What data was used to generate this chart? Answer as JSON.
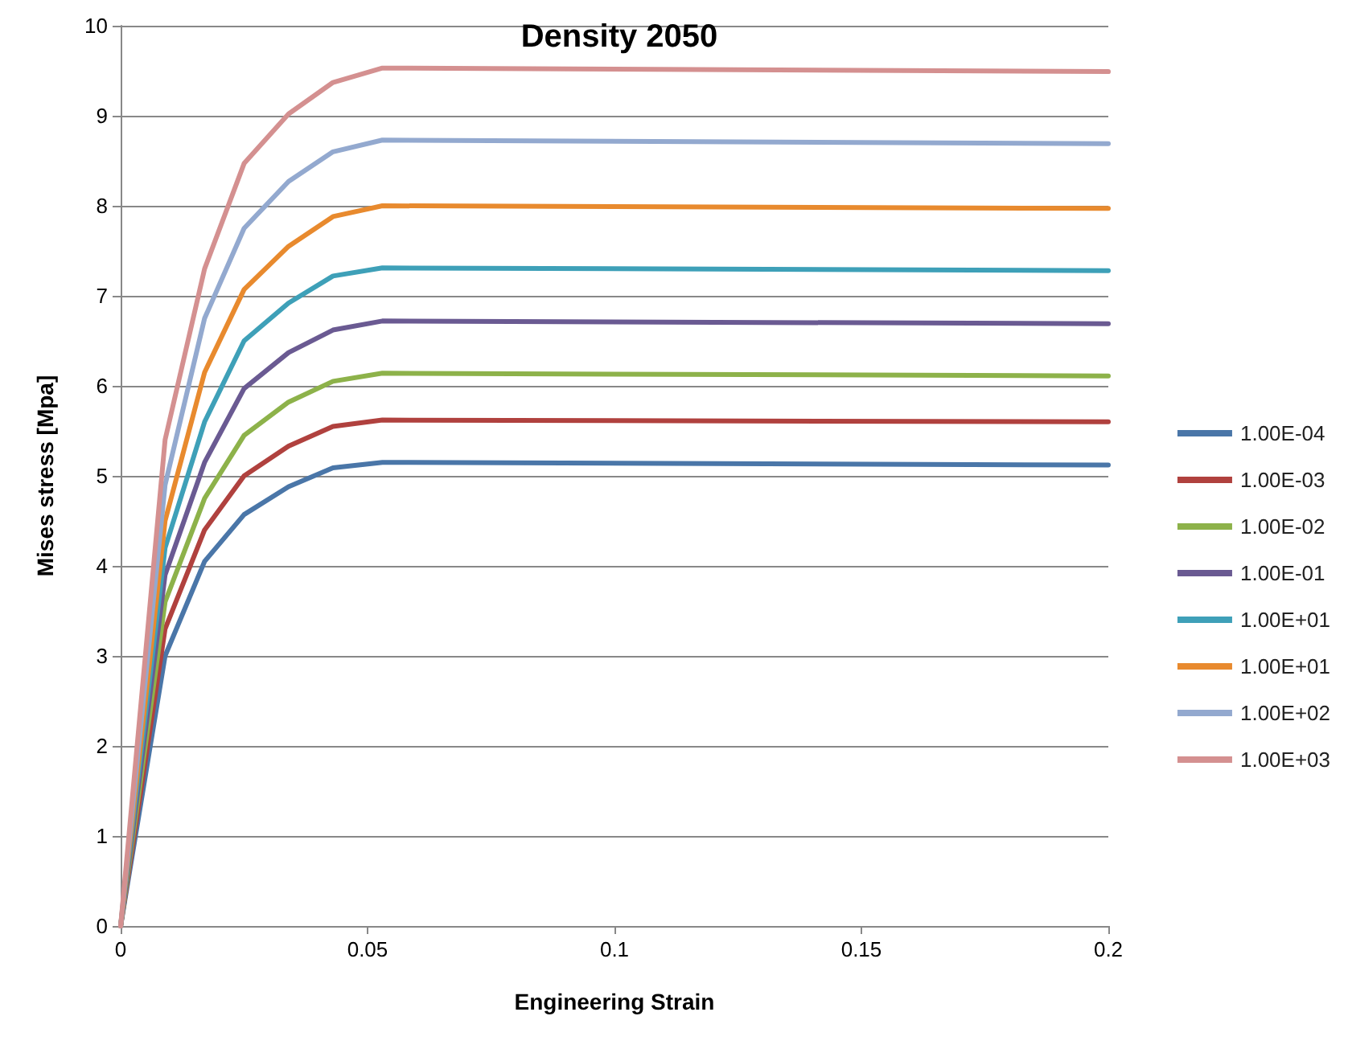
{
  "chart_data": {
    "type": "line",
    "title": "Density 2050",
    "xlabel": "Engineering Strain",
    "ylabel": "Mises stress [Mpa]",
    "x": [
      0,
      0.009,
      0.017,
      0.025,
      0.034,
      0.043,
      0.053,
      0.2
    ],
    "series": [
      {
        "name": "1.00E-04",
        "color": "#4a76a8",
        "values": [
          0,
          3.0,
          4.05,
          4.57,
          4.88,
          5.09,
          5.15,
          5.12
        ]
      },
      {
        "name": "1.00E-03",
        "color": "#b0413e",
        "values": [
          0,
          3.3,
          4.4,
          5.0,
          5.33,
          5.55,
          5.62,
          5.6
        ]
      },
      {
        "name": "1.00E-02",
        "color": "#8db24a",
        "values": [
          0,
          3.6,
          4.75,
          5.45,
          5.82,
          6.05,
          6.14,
          6.11
        ]
      },
      {
        "name": "1.00E-01",
        "color": "#6a5a92",
        "values": [
          0,
          3.9,
          5.15,
          5.97,
          6.37,
          6.62,
          6.72,
          6.69
        ]
      },
      {
        "name": "1.00E+01",
        "color": "#3ea0b8",
        "values": [
          0,
          4.2,
          5.6,
          6.5,
          6.92,
          7.22,
          7.31,
          7.28
        ]
      },
      {
        "name": "1.00E+01",
        "color": "#e88a2e",
        "values": [
          0,
          4.5,
          6.15,
          7.07,
          7.55,
          7.88,
          8.0,
          7.97
        ]
      },
      {
        "name": "1.00E+02",
        "color": "#93a9cf",
        "values": [
          0,
          4.9,
          6.75,
          7.75,
          8.27,
          8.6,
          8.73,
          8.69
        ]
      },
      {
        "name": "1.00E+03",
        "color": "#d49090",
        "values": [
          0,
          5.4,
          7.3,
          8.47,
          9.02,
          9.37,
          9.53,
          9.49
        ]
      }
    ],
    "xlim": [
      0,
      0.2
    ],
    "xticks": [
      0,
      0.05,
      0.1,
      0.15,
      0.2
    ],
    "ylim": [
      0,
      10
    ],
    "yticks": [
      0,
      1,
      2,
      3,
      4,
      5,
      6,
      7,
      8,
      9,
      10
    ],
    "grid": "y",
    "legend": "right",
    "marker": "none",
    "line_style": "solid"
  }
}
